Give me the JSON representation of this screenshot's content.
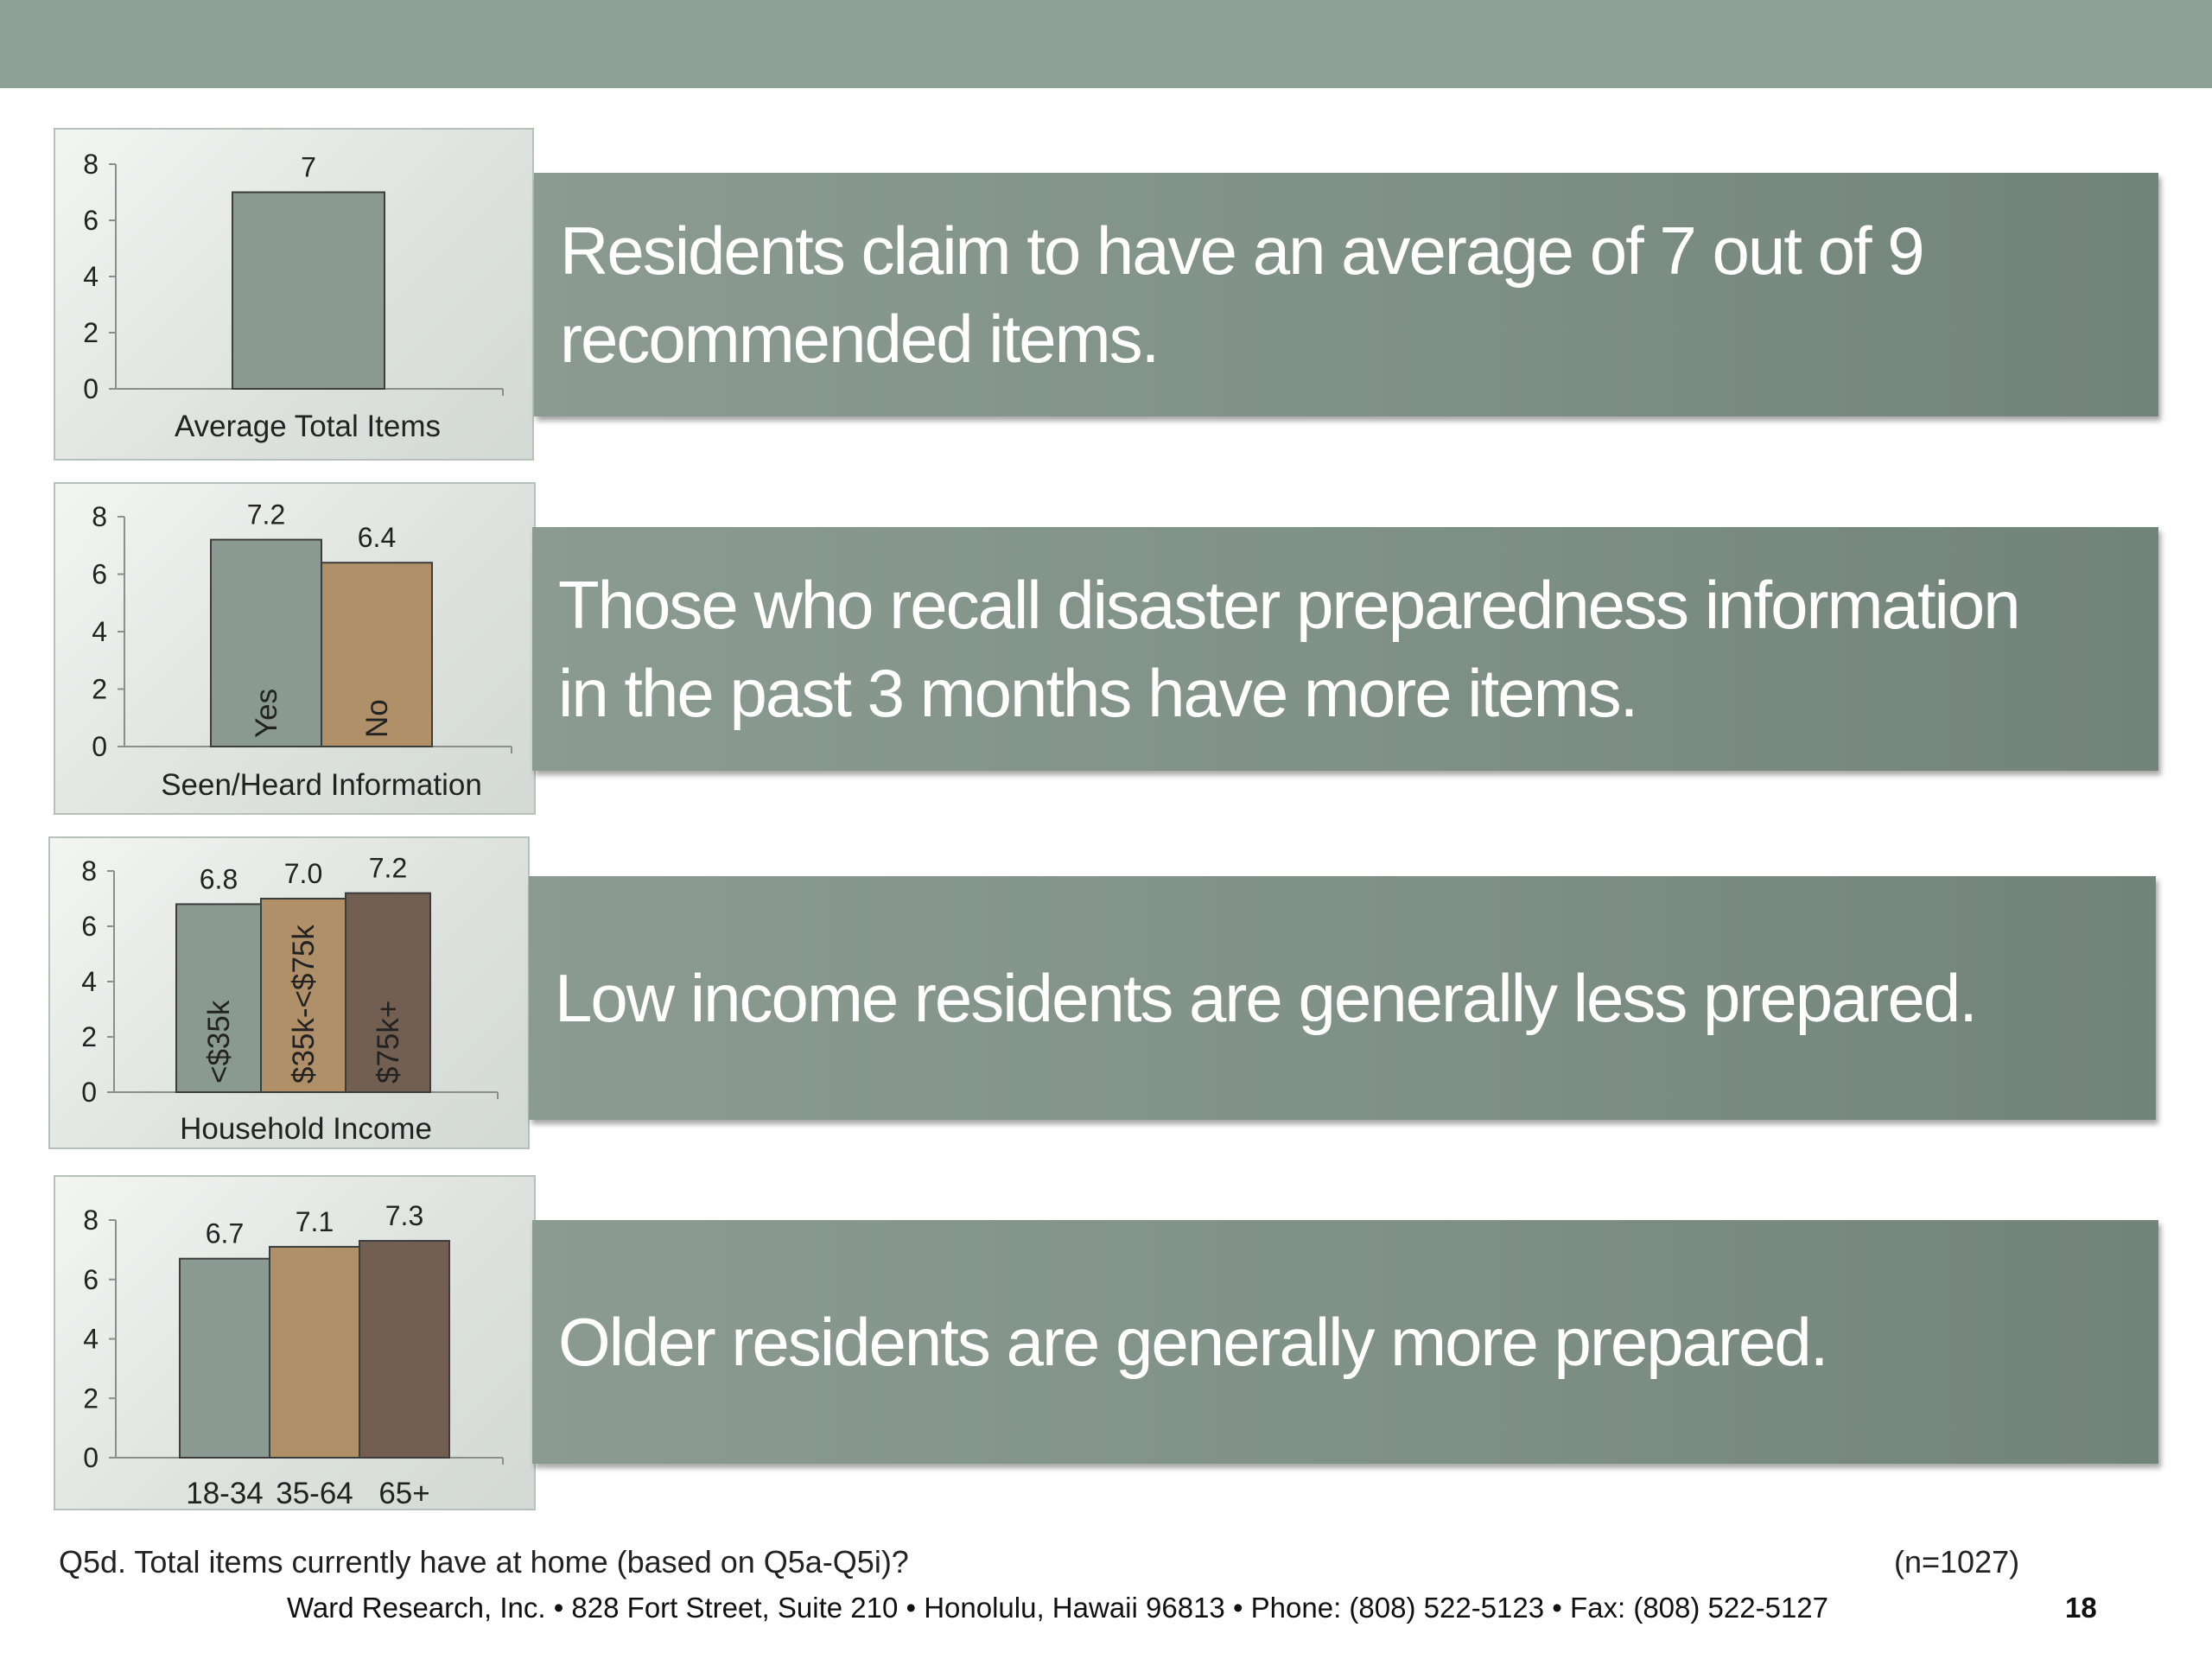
{
  "colors": {
    "header_bar": "#8fa096",
    "banner": "#7f9086",
    "bar_gray": "#8a9a92",
    "bar_tan": "#b09068",
    "bar_brown": "#735e52"
  },
  "chart_data": [
    {
      "type": "bar",
      "xlabel": "Average Total Items",
      "ylim": [
        0,
        8
      ],
      "yticks": [
        0,
        2,
        4,
        6,
        8
      ],
      "categories": [
        ""
      ],
      "values": [
        7
      ],
      "value_labels": [
        "7"
      ],
      "bar_colors": [
        "#8a9a92"
      ]
    },
    {
      "type": "bar",
      "xlabel": "Seen/Heard Information",
      "ylim": [
        0,
        8
      ],
      "yticks": [
        0,
        2,
        4,
        6,
        8
      ],
      "categories": [
        "Yes",
        "No"
      ],
      "values": [
        7.2,
        6.4
      ],
      "value_labels": [
        "7.2",
        "6.4"
      ],
      "bar_colors": [
        "#8a9a92",
        "#b09068"
      ]
    },
    {
      "type": "bar",
      "xlabel": "Household Income",
      "ylim": [
        0,
        8
      ],
      "yticks": [
        0,
        2,
        4,
        6,
        8
      ],
      "categories": [
        "<$35k",
        "$35k-<$75k",
        "$75k+"
      ],
      "values": [
        6.8,
        7.0,
        7.2
      ],
      "value_labels": [
        "6.8",
        "7.0",
        "7.2"
      ],
      "bar_colors": [
        "#8a9a92",
        "#b09068",
        "#735e52"
      ]
    },
    {
      "type": "bar",
      "xlabel": "",
      "ylim": [
        0,
        8
      ],
      "yticks": [
        0,
        2,
        4,
        6,
        8
      ],
      "categories": [
        "18-34",
        "35-64",
        "65+"
      ],
      "values": [
        6.7,
        7.1,
        7.3
      ],
      "value_labels": [
        "6.7",
        "7.1",
        "7.3"
      ],
      "bar_colors": [
        "#8a9a92",
        "#b09068",
        "#735e52"
      ]
    }
  ],
  "banners": [
    {
      "line1": "Residents claim to have an average of 7 out of 9",
      "line2": "recommended items."
    },
    {
      "line1": "Those who recall disaster preparedness information",
      "line2": "in the past 3 months have more items."
    },
    {
      "line1": "Low income residents are generally less prepared.",
      "line2": ""
    },
    {
      "line1": "Older residents are generally more prepared.",
      "line2": ""
    }
  ],
  "footnote": {
    "question": "Q5d. Total items currently have at home (based on Q5a-Q5i)?",
    "sample": "(n=1027)"
  },
  "footer": {
    "company": "Ward Research, Inc. • 828 Fort Street, Suite 210 • Honolulu, Hawaii 96813 • Phone: (808) 522-5123 • Fax: (808) 522-5127",
    "page_number": "18"
  }
}
